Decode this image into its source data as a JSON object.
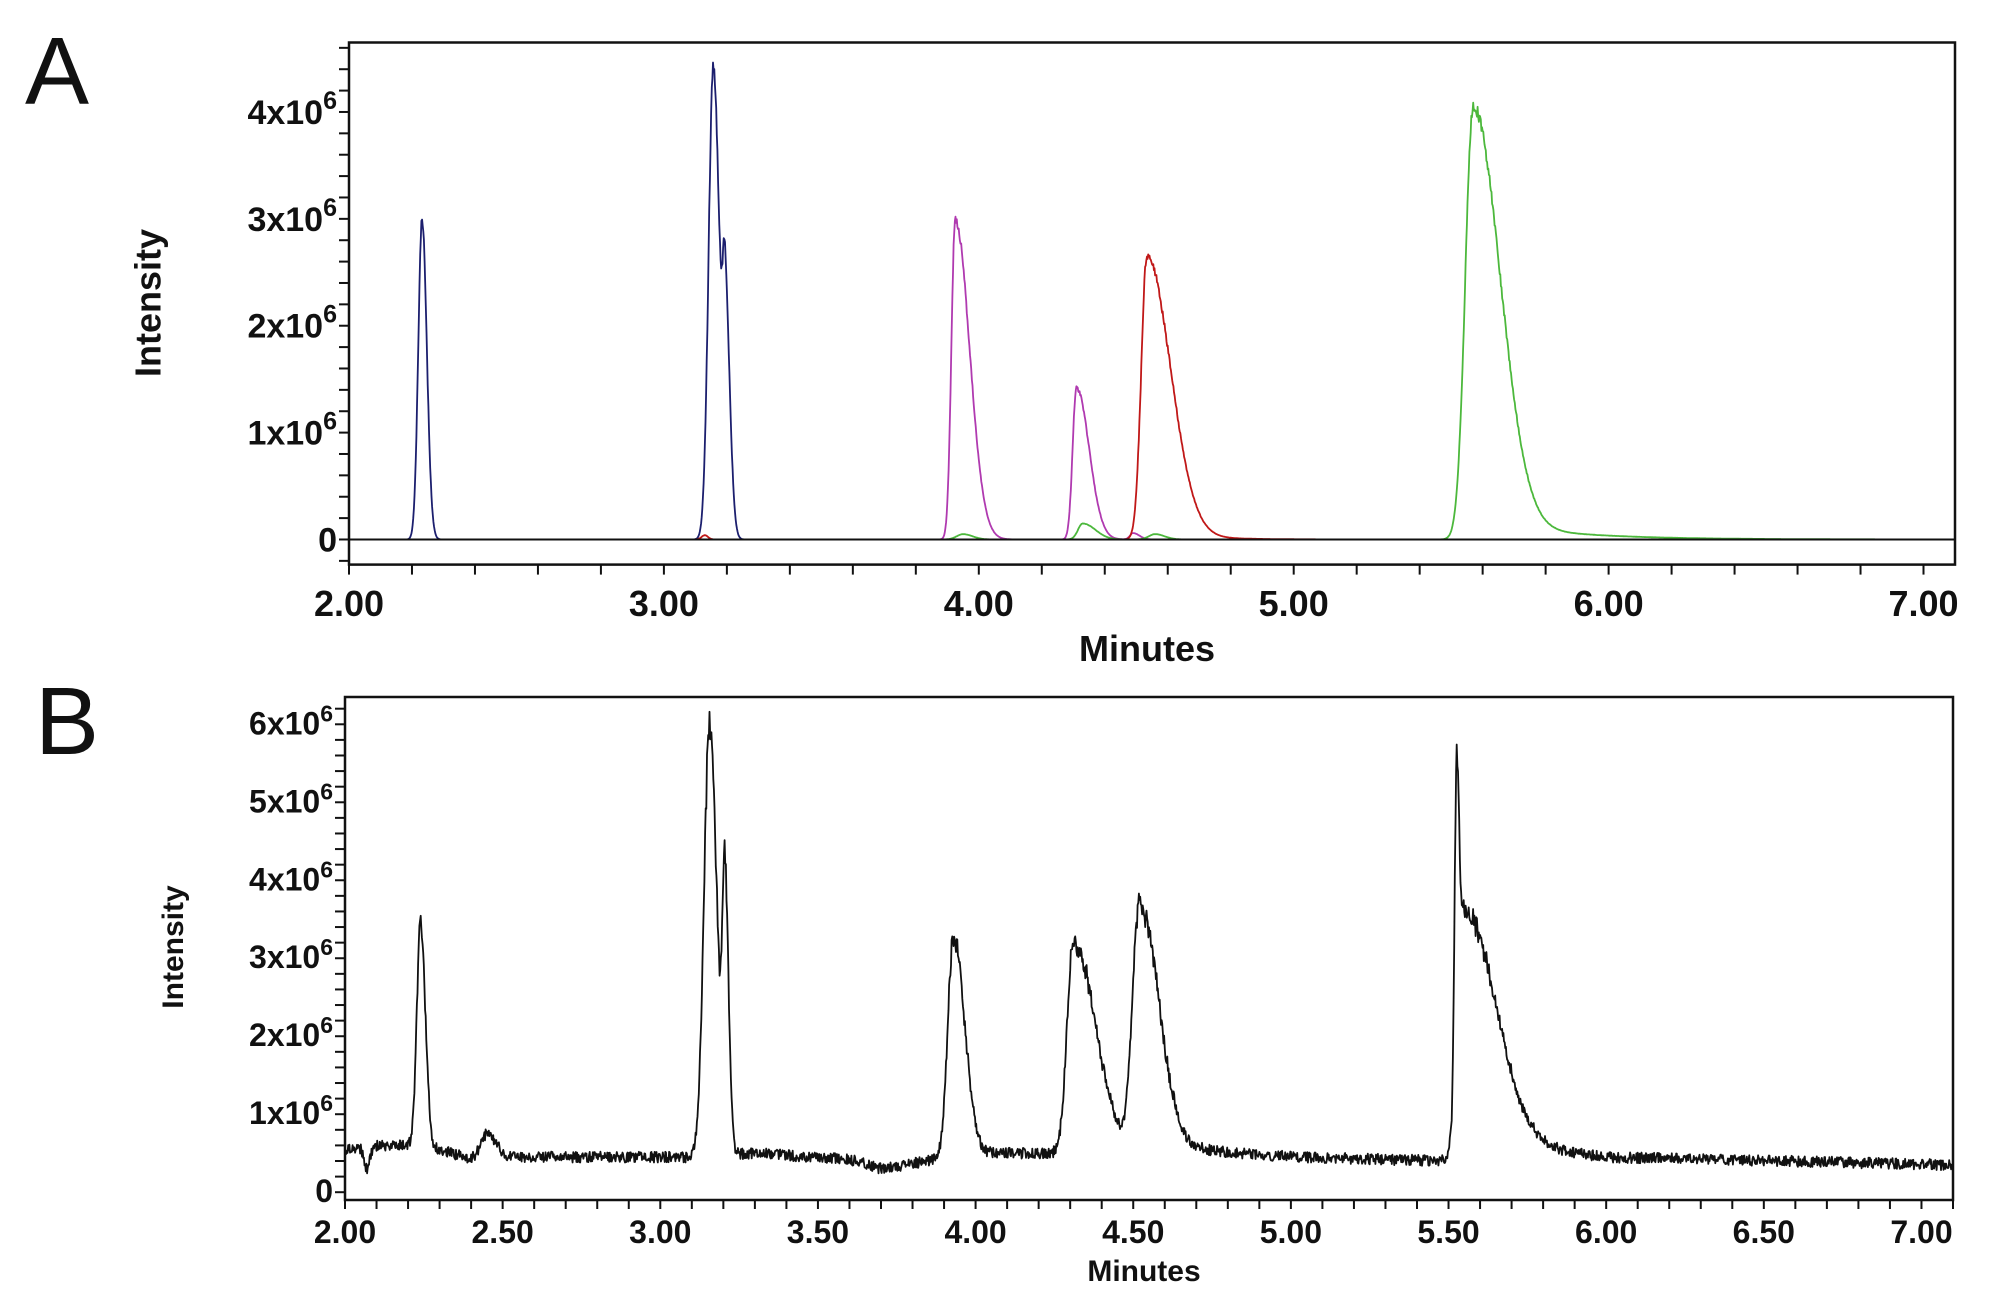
{
  "panels": [
    {
      "letter": "A"
    },
    {
      "letter": "B"
    }
  ],
  "chart_data": [
    {
      "type": "line",
      "panel": "A",
      "xlabel": "Minutes",
      "ylabel": "Intensity",
      "xlim": [
        2.0,
        7.1
      ],
      "ylim": [
        -235000,
        4650000
      ],
      "grid": false,
      "zero_line": true,
      "xticks": [
        {
          "value": 2,
          "label": "2.00"
        },
        {
          "value": 3,
          "label": "3.00"
        },
        {
          "value": 4,
          "label": "4.00"
        },
        {
          "value": 5,
          "label": "5.00"
        },
        {
          "value": 6,
          "label": "6.00"
        },
        {
          "value": 7,
          "label": "7.00"
        }
      ],
      "x_minor_step": 0.2,
      "yticks": [
        {
          "value": 0,
          "base": "0",
          "exp": ""
        },
        {
          "value": 1000000,
          "base": "1x10",
          "exp": "6"
        },
        {
          "value": 2000000,
          "base": "2x10",
          "exp": "6"
        },
        {
          "value": 3000000,
          "base": "3x10",
          "exp": "6"
        },
        {
          "value": 4000000,
          "base": "4x10",
          "exp": "6"
        }
      ],
      "y_minor_step": 200000,
      "series": [
        {
          "color": "#1c1f6e",
          "peaks": [
            {
              "rt": 2.232,
              "apex": 3000000,
              "rise": 0.012,
              "tail": 0.015
            },
            {
              "rt": 3.157,
              "apex": 4440000,
              "rise": 0.015,
              "tail": 0.02
            },
            {
              "rt": 3.195,
              "apex": 2000000,
              "rise": 0.008,
              "tail": 0.015
            }
          ]
        },
        {
          "color": "#b03ab0",
          "peaks": [
            {
              "rt": 3.925,
              "apex": 3000000,
              "rise": 0.012,
              "tail": 0.045
            },
            {
              "rt": 4.31,
              "apex": 1420000,
              "rise": 0.012,
              "tail": 0.04
            },
            {
              "rt": 4.49,
              "apex": 60000,
              "rise": 0.01,
              "tail": 0.02
            }
          ]
        },
        {
          "color": "#c01818",
          "peaks": [
            {
              "rt": 3.13,
              "apex": 40000,
              "rise": 0.01,
              "tail": 0.01
            },
            {
              "rt": 4.534,
              "apex": 2660000,
              "rise": 0.018,
              "tail": 0.075,
              "tail_frac": 0.04,
              "tail_tau": 0.12
            }
          ]
        },
        {
          "color": "#4cb83c",
          "peaks": [
            {
              "rt": 3.95,
              "apex": 50000,
              "rise": 0.02,
              "tail": 0.03
            },
            {
              "rt": 4.33,
              "apex": 150000,
              "rise": 0.015,
              "tail": 0.04
            },
            {
              "rt": 4.56,
              "apex": 50000,
              "rise": 0.02,
              "tail": 0.03
            },
            {
              "rt": 5.57,
              "apex": 4060000,
              "rise": 0.025,
              "tail": 0.085,
              "tail_frac": 0.05,
              "tail_tau": 0.25
            }
          ]
        }
      ]
    },
    {
      "type": "line",
      "panel": "B",
      "xlabel": "Minutes",
      "ylabel": "Intensity",
      "xlim": [
        2.0,
        7.1
      ],
      "ylim": [
        -100000,
        6350000
      ],
      "grid": false,
      "zero_line": false,
      "xticks": [
        {
          "value": 2.0,
          "label": "2.00"
        },
        {
          "value": 2.5,
          "label": "2.50"
        },
        {
          "value": 3.0,
          "label": "3.00"
        },
        {
          "value": 3.5,
          "label": "3.50"
        },
        {
          "value": 4.0,
          "label": "4.00"
        },
        {
          "value": 4.5,
          "label": "4.50"
        },
        {
          "value": 5.0,
          "label": "5.00"
        },
        {
          "value": 5.5,
          "label": "5.50"
        },
        {
          "value": 6.0,
          "label": "6.00"
        },
        {
          "value": 6.5,
          "label": "6.50"
        },
        {
          "value": 7.0,
          "label": "7.00"
        }
      ],
      "x_minor_step": 0.1,
      "yticks": [
        {
          "value": 0,
          "base": "0",
          "exp": ""
        },
        {
          "value": 1000000,
          "base": "1x10",
          "exp": "6"
        },
        {
          "value": 2000000,
          "base": "2x10",
          "exp": "6"
        },
        {
          "value": 3000000,
          "base": "3x10",
          "exp": "6"
        },
        {
          "value": 4000000,
          "base": "4x10",
          "exp": "6"
        },
        {
          "value": 5000000,
          "base": "5x10",
          "exp": "6"
        },
        {
          "value": 6000000,
          "base": "6x10",
          "exp": "6"
        }
      ],
      "y_minor_step": 200000,
      "series": [
        {
          "color": "#111111",
          "baseline": [
            [
              2.0,
              550000
            ],
            [
              2.05,
              550000
            ],
            [
              2.07,
              280000
            ],
            [
              2.09,
              600000
            ],
            [
              2.2,
              600000
            ],
            [
              2.3,
              550000
            ],
            [
              2.4,
              420000
            ],
            [
              2.6,
              450000
            ],
            [
              3.1,
              450000
            ],
            [
              3.3,
              500000
            ],
            [
              3.6,
              420000
            ],
            [
              3.7,
              300000
            ],
            [
              3.85,
              400000
            ],
            [
              3.9,
              450000
            ],
            [
              4.0,
              500000
            ],
            [
              4.25,
              500000
            ],
            [
              4.6,
              550000
            ],
            [
              4.8,
              500000
            ],
            [
              5.0,
              450000
            ],
            [
              5.5,
              400000
            ],
            [
              5.8,
              550000
            ],
            [
              6.0,
              450000
            ],
            [
              7.1,
              350000
            ]
          ],
          "peaks": [
            {
              "rt": 2.24,
              "apex": 3500000,
              "rise": 0.012,
              "tail": 0.015
            },
            {
              "rt": 2.45,
              "apex": 750000,
              "rise": 0.02,
              "tail": 0.03
            },
            {
              "rt": 3.157,
              "apex": 6070000,
              "rise": 0.018,
              "tail": 0.022
            },
            {
              "rt": 3.205,
              "apex": 3800000,
              "rise": 0.008,
              "tail": 0.012
            },
            {
              "rt": 3.93,
              "apex": 3290000,
              "rise": 0.018,
              "tail": 0.035
            },
            {
              "rt": 4.31,
              "apex": 3190000,
              "rise": 0.02,
              "tail": 0.07
            },
            {
              "rt": 4.52,
              "apex": 3720000,
              "rise": 0.022,
              "tail": 0.06,
              "tail_frac": 0.05,
              "tail_tau": 0.12
            },
            {
              "rt": 5.525,
              "apex": 4120000,
              "rise": 0.006,
              "tail": 0.008
            },
            {
              "rt": 5.55,
              "apex": 3600000,
              "rise": 0.02,
              "tail": 0.1
            }
          ]
        }
      ]
    }
  ]
}
